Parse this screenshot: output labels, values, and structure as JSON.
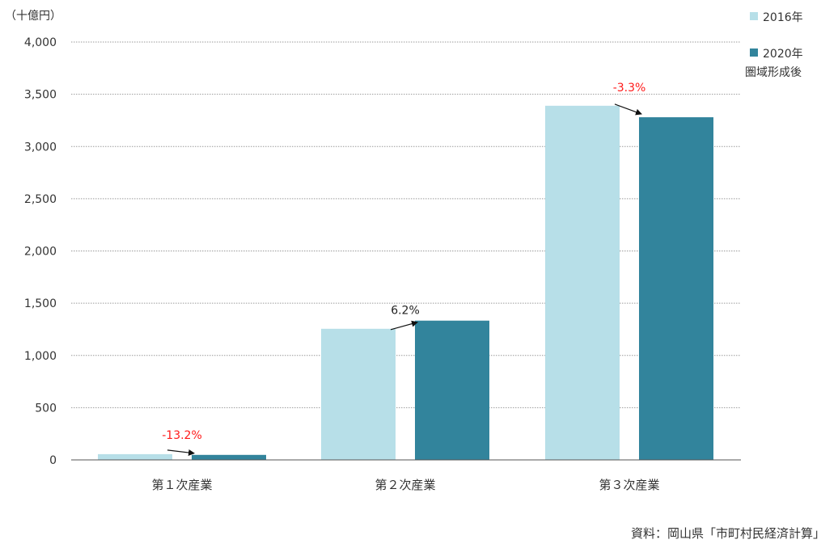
{
  "chart_data": {
    "type": "bar",
    "unit_label": "（十億円）",
    "categories": [
      "第１次産業",
      "第２次産業",
      "第３次産業"
    ],
    "series": [
      {
        "name": "2016年",
        "color": "#b7dfe8",
        "values": [
          55,
          1255,
          3390
        ]
      },
      {
        "name": "2020年",
        "color": "#32849c",
        "values": [
          48,
          1333,
          3280
        ]
      }
    ],
    "legend_note": "圏域形成後",
    "legend_note_color": "#ff1a1a",
    "annotations": [
      {
        "category": "第１次産業",
        "text": "-13.2%",
        "color": "#ff1a1a"
      },
      {
        "category": "第２次産業",
        "text": "6.2%",
        "color": "#222222"
      },
      {
        "category": "第３次産業",
        "text": "-3.3%",
        "color": "#ff1a1a"
      }
    ],
    "ylim": [
      0,
      4000
    ],
    "yticks": [
      "0",
      "500",
      "1,000",
      "1,500",
      "2,000",
      "2,500",
      "3,000",
      "3,500",
      "4,000"
    ],
    "ytick_values": [
      0,
      500,
      1000,
      1500,
      2000,
      2500,
      3000,
      3500,
      4000
    ],
    "grid": true,
    "legend_position": "top-right",
    "source": "資料：岡山県「市町村民経済計算」"
  }
}
